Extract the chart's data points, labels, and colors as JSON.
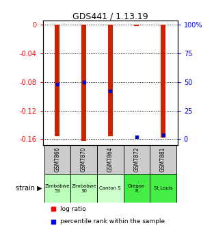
{
  "title": "GDS441 / 1.13.19",
  "samples": [
    "GSM7866",
    "GSM7870",
    "GSM7864",
    "GSM7872",
    "GSM7881"
  ],
  "strains": [
    "Zimbabwe\n53",
    "Zimbabwe\n30",
    "Canton S",
    "Oregon\nR",
    "St Louis"
  ],
  "strain_colors": [
    "#bbffbb",
    "#bbffbb",
    "#ccffcc",
    "#44ee44",
    "#44ee44"
  ],
  "log_ratios": [
    -0.156,
    -0.163,
    -0.156,
    -0.001,
    -0.158
  ],
  "percentile_ranks": [
    48,
    50,
    42,
    2,
    4
  ],
  "bar_color": "#cc2200",
  "percentile_color": "#0000cc",
  "left_yticks": [
    0,
    -0.04,
    -0.08,
    -0.12,
    -0.16
  ],
  "right_yticks_labels": [
    "100%",
    "75",
    "50",
    "25",
    "0"
  ],
  "right_yticks_pct": [
    100,
    75,
    50,
    25,
    0
  ],
  "background_color": "#ffffff",
  "gsm_row_color": "#cccccc",
  "legend_items": [
    "log ratio",
    "percentile rank within the sample"
  ]
}
